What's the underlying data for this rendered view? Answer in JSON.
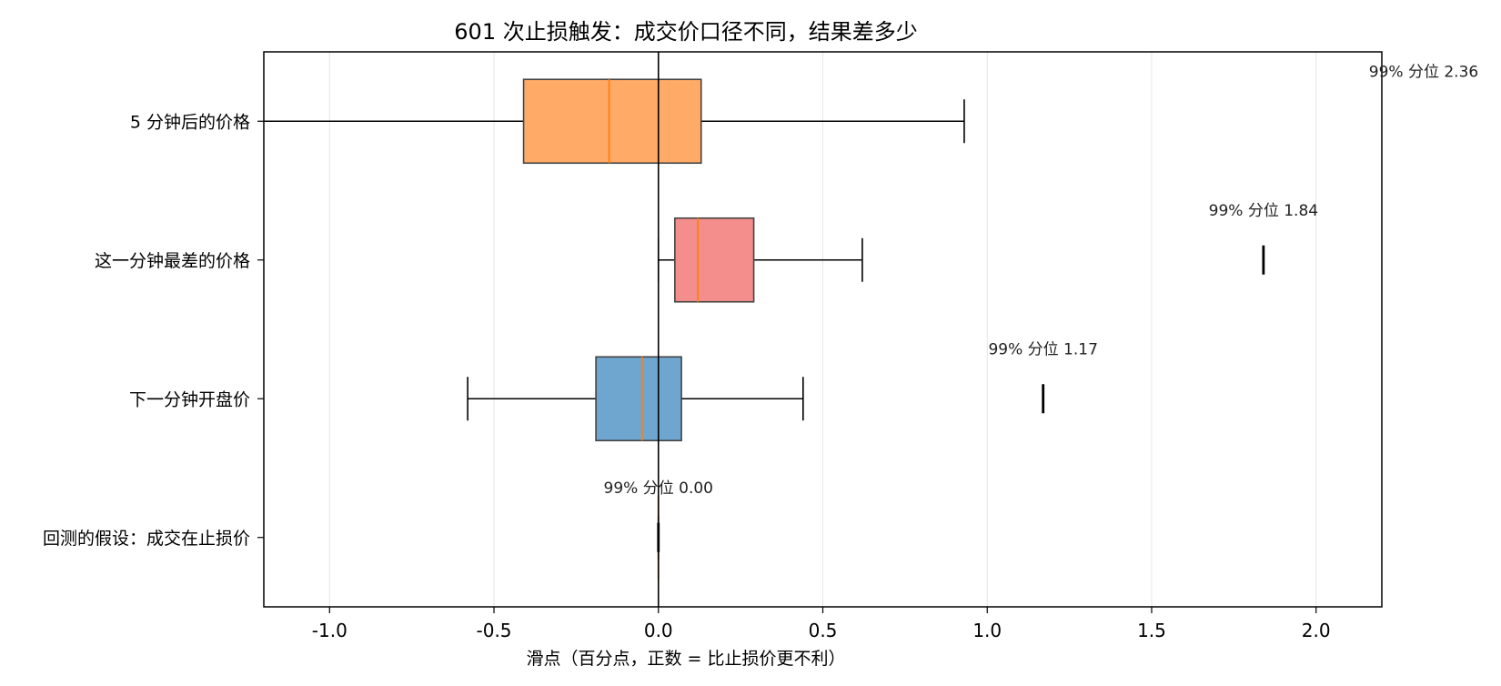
{
  "chart_data": {
    "type": "box",
    "orientation": "horizontal",
    "title": "601 次止损触发：成交价口径不同，结果差多少",
    "xlabel": "滑点（百分点，正数 = 比止损价更不利）",
    "ylabel": "",
    "xlim": [
      -1.2,
      2.2
    ],
    "xticks": [
      -1.0,
      -0.5,
      0.0,
      0.5,
      1.0,
      1.5,
      2.0
    ],
    "xtick_labels": [
      "-1.0",
      "-0.5",
      "0.0",
      "0.5",
      "1.0",
      "1.5",
      "2.0"
    ],
    "grid": "vertical",
    "reference_line_x": 0.0,
    "categories": [
      "5 分钟后的价格",
      "这一分钟最差的价格",
      "下一分钟开盘价",
      "回测的假设：成交在止损价"
    ],
    "series": [
      {
        "category": "5 分钟后的价格",
        "whisker_low": -1.2,
        "q1": -0.41,
        "median": -0.15,
        "q3": 0.13,
        "whisker_high": 0.93,
        "p99": 2.36,
        "p99_label": "99% 分位 2.36",
        "color": "#ffaa66"
      },
      {
        "category": "这一分钟最差的价格",
        "whisker_low": 0.0,
        "q1": 0.05,
        "median": 0.12,
        "q3": 0.29,
        "whisker_high": 0.62,
        "p99": 1.84,
        "p99_label": "99% 分位 1.84",
        "color": "#f48e8c"
      },
      {
        "category": "下一分钟开盘价",
        "whisker_low": -0.58,
        "q1": -0.19,
        "median": -0.05,
        "q3": 0.07,
        "whisker_high": 0.44,
        "p99": 1.17,
        "p99_label": "99% 分位 1.17",
        "color": "#6fa6d0"
      },
      {
        "category": "回测的假设：成交在止损价",
        "whisker_low": 0.0,
        "q1": 0.0,
        "median": 0.0,
        "q3": 0.0,
        "whisker_high": 0.0,
        "p99": 0.0,
        "p99_label": "99% 分位 0.00",
        "color": "#ff7f0e"
      }
    ],
    "colors": {
      "median": "#ff7f0e",
      "box_edge": "#444444",
      "grid": "#e6e6e6",
      "axis": "#000000"
    }
  }
}
